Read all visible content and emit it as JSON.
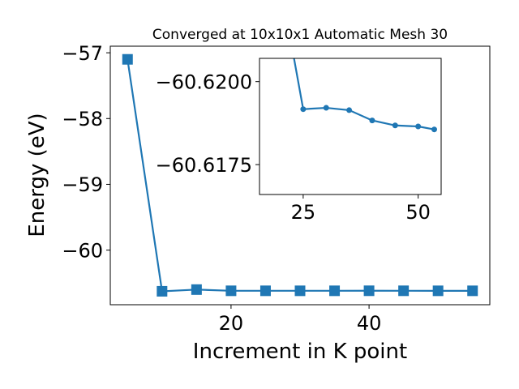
{
  "chart_data": [
    {
      "type": "line",
      "title": "Converged at 10x10x1 Automatic Mesh 30",
      "xlabel": "Increment in K point",
      "ylabel": "Energy (eV)",
      "xlim": [
        2.5,
        57.5
      ],
      "ylim": [
        -60.83,
        -56.9
      ],
      "xticks": [
        20,
        40
      ],
      "yticks": [
        -57,
        -58,
        -59,
        -60
      ],
      "xtick_labels": [
        "20",
        "40"
      ],
      "ytick_labels": [
        "−57",
        "−58",
        "−59",
        "−60"
      ],
      "grid": false,
      "marker": "square",
      "color": "#1f77b4",
      "series": [
        {
          "x": [
            5,
            10,
            15,
            20,
            25,
            30,
            35,
            40,
            45,
            50,
            55
          ],
          "y": [
            -57.1,
            -60.6257,
            -60.5999,
            -60.6183,
            -60.6183,
            -60.6185,
            -60.6183,
            -60.6178,
            -60.6181,
            -60.6186,
            -60.6186
          ]
        }
      ]
    },
    {
      "type": "line",
      "title": "",
      "xlabel": "",
      "ylabel": "",
      "xlim": [
        15.5,
        55.0
      ],
      "ylim": [
        -60.6166,
        -60.6207
      ],
      "xticks": [
        25,
        50
      ],
      "yticks": [
        -60.62,
        -60.6175
      ],
      "xtick_labels": [
        "25",
        "50"
      ],
      "ytick_labels": [
        "−60.6200",
        "−60.6175"
      ],
      "grid": false,
      "marker": "circle",
      "color": "#1f77b4",
      "series": [
        {
          "x": [
            20,
            25,
            30,
            35,
            40,
            45,
            50,
            53.5
          ],
          "y": [
            -60.623,
            -60.61917,
            -60.61921,
            -60.61914,
            -60.61883,
            -60.61868,
            -60.61865,
            -60.61856
          ]
        }
      ]
    }
  ]
}
